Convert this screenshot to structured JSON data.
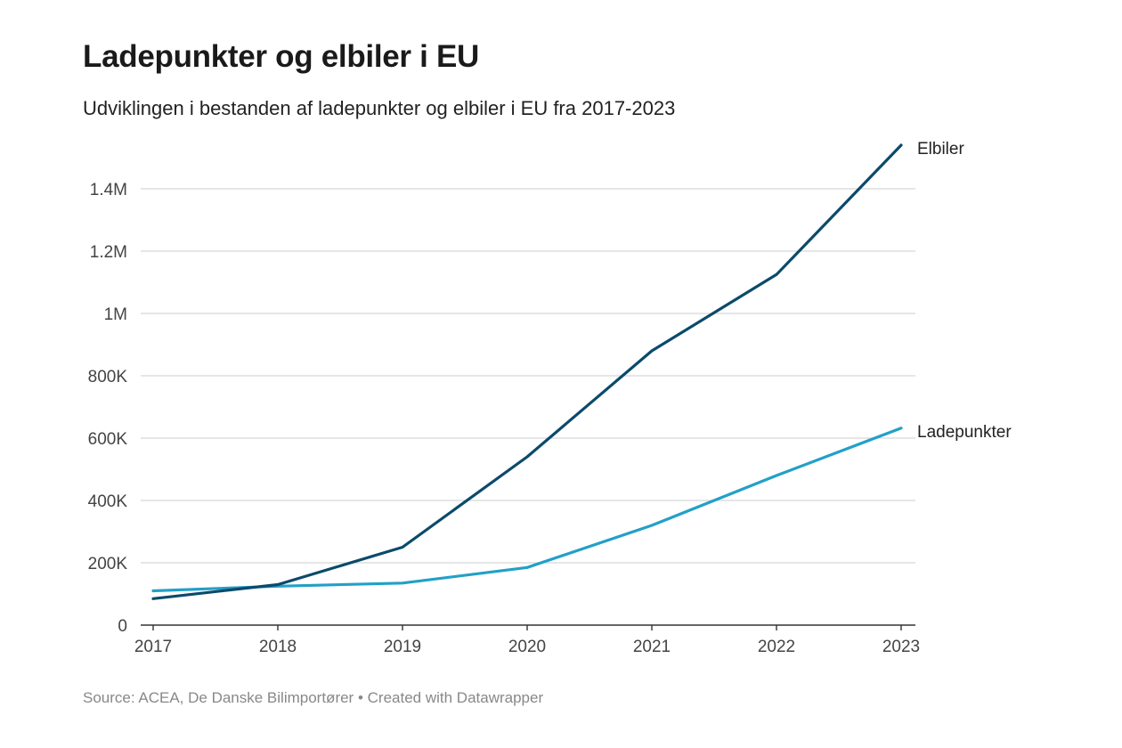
{
  "title": "Ladepunkter og elbiler i EU",
  "subtitle": "Udviklingen i bestanden af ladepunkter og elbiler i EU fra 2017-2023",
  "footer": {
    "source": "Source: ACEA, De Danske Bilimportører",
    "separator": "•",
    "created": "Created with Datawrapper"
  },
  "colors": {
    "elbiler": "#0b4a6b",
    "ladepunkter": "#22a0c8",
    "grid": "#d6d6d6",
    "axis": "#333333"
  },
  "chart_data": {
    "type": "line",
    "title": "Ladepunkter og elbiler i EU",
    "subtitle": "Udviklingen i bestanden af ladepunkter og elbiler i EU fra 2017-2023",
    "x": [
      2017,
      2018,
      2019,
      2020,
      2021,
      2022,
      2023
    ],
    "x_tick_labels": [
      "2017",
      "2018",
      "2019",
      "2020",
      "2021",
      "2022",
      "2023"
    ],
    "y_ticks": [
      0,
      200000,
      400000,
      600000,
      800000,
      1000000,
      1200000,
      1400000
    ],
    "y_tick_labels": [
      "0",
      "200K",
      "400K",
      "600K",
      "800K",
      "1M",
      "1.2M",
      "1.4M"
    ],
    "ylim": [
      0,
      1400000
    ],
    "grid": true,
    "legend": "direct labels at line ends",
    "series": [
      {
        "name": "Elbiler",
        "color": "#0b4a6b",
        "values": [
          85000,
          130000,
          250000,
          540000,
          880000,
          1125000,
          1540000
        ]
      },
      {
        "name": "Ladepunkter",
        "color": "#22a0c8",
        "values": [
          110000,
          125000,
          135000,
          185000,
          320000,
          480000,
          632000
        ]
      }
    ]
  }
}
